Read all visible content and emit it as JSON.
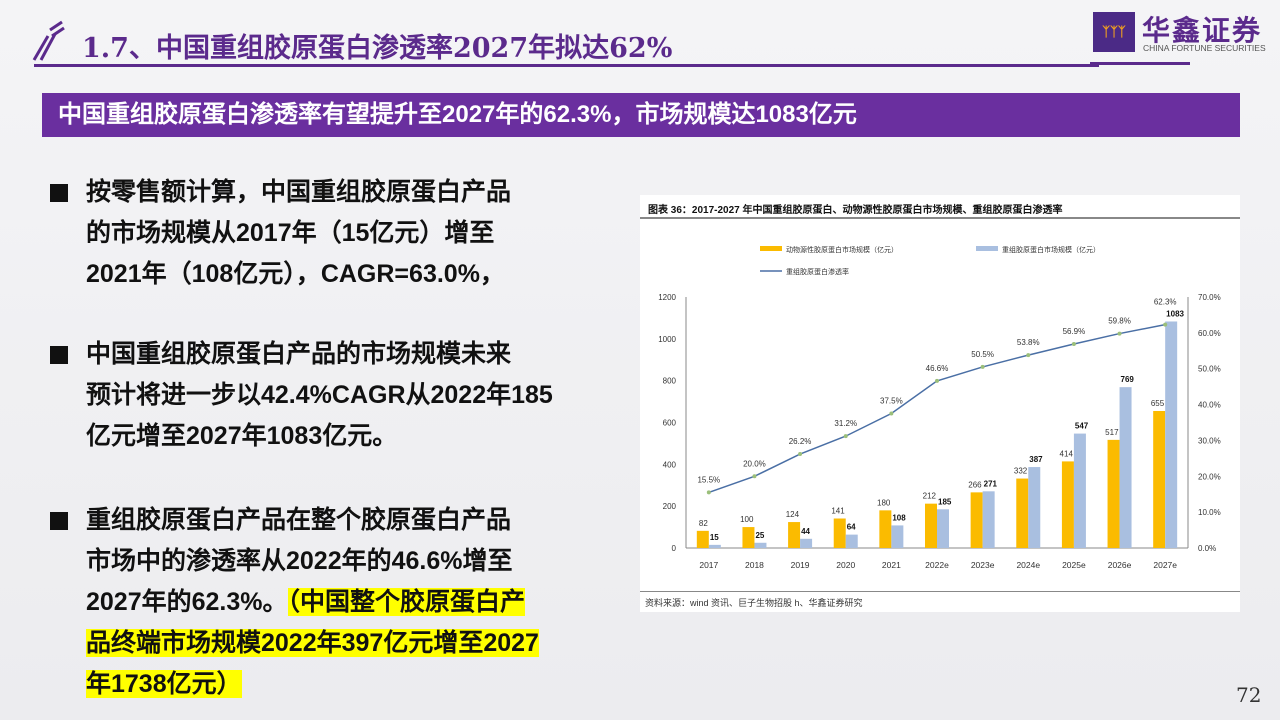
{
  "header": {
    "title": "1.7、中国重组胶原蛋白渗透率2027年拟达62%",
    "logo_cn": "华鑫证券",
    "logo_en": "CHINA FORTUNE SECURITIES"
  },
  "banner": "中国重组胶原蛋白渗透率有望提升至2027年的62.3%，市场规模达1083亿元",
  "bullets": [
    {
      "lines": [
        "按零售额计算，中国重组胶原蛋白产品",
        "的市场规模从2017年（15亿元）增至",
        "2021年（108亿元），CAGR=63.0%，"
      ]
    },
    {
      "lines": [
        "中国重组胶原蛋白产品的市场规模未来",
        "预计将进一步以42.4%CAGR从2022年185",
        "亿元增至2027年1083亿元。"
      ]
    },
    {
      "lines": [
        "重组胶原蛋白产品在整个胶原蛋白产品",
        "市场中的渗透率从2022年的46.6%增至",
        "2027年的62.3%。"
      ],
      "highlight": [
        "（中国整个胶原蛋白产",
        "品终端市场规模2022年397亿元增至2027",
        "年1738亿元）"
      ]
    }
  ],
  "page_number": "72",
  "colors": {
    "purple": "#5b2a8c",
    "orange": "#fbbb00",
    "blue": "#a9bfe0",
    "line": "#4a6fa5"
  },
  "chart_data": {
    "type": "bar",
    "title": "图表 36：2017-2027 年中国重组胶原蛋白、动物源性胶原蛋白市场规模、重组胶原蛋白渗透率",
    "source": "资料来源：wind 资讯、巨子生物招股 h、华鑫证券研究",
    "categories": [
      "2017",
      "2018",
      "2019",
      "2020",
      "2021",
      "2022e",
      "2023e",
      "2024e",
      "2025e",
      "2026e",
      "2027e"
    ],
    "series": [
      {
        "name": "动物源性胶原蛋白市场规模（亿元）",
        "type": "bar",
        "axis": "left",
        "values": [
          82,
          100,
          124,
          141,
          180,
          212,
          266,
          332,
          414,
          517,
          655
        ]
      },
      {
        "name": "重组胶原蛋白市场规模（亿元）",
        "type": "bar",
        "axis": "left",
        "values": [
          15,
          25,
          44,
          64,
          108,
          185,
          271,
          387,
          547,
          769,
          1083
        ]
      },
      {
        "name": "重组胶原蛋白渗透率",
        "type": "line",
        "axis": "right",
        "values": [
          15.5,
          20.0,
          26.2,
          31.2,
          37.5,
          46.6,
          50.5,
          53.8,
          56.9,
          59.8,
          62.3
        ]
      }
    ],
    "y_left": {
      "range": [
        0,
        1200
      ],
      "ticks": [
        "0",
        "200",
        "400",
        "600",
        "800",
        "1000",
        "1200"
      ]
    },
    "y_right": {
      "range": [
        0,
        70
      ],
      "ticks": [
        "0.0%",
        "10.0%",
        "20.0%",
        "30.0%",
        "40.0%",
        "50.0%",
        "60.0%",
        "70.0%"
      ]
    },
    "legend_position": "top"
  }
}
